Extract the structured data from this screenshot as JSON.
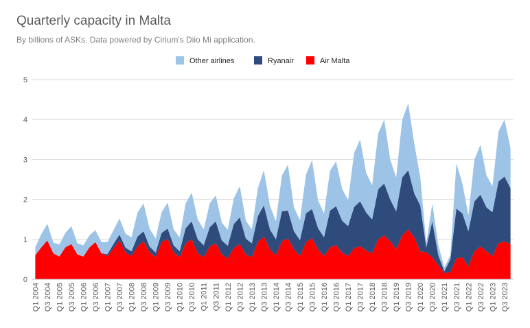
{
  "colors": {
    "other": "#9dc3e6",
    "ryanair": "#2f4b7c",
    "airmalta": "#ff0000",
    "grid": "#d9d9d9",
    "axis": "#bfbfbf"
  },
  "chart_data": {
    "type": "area",
    "title": "Quarterly capacity in Malta",
    "subtitle": "By billions of ASKs. Data powered by Cirium's Diio Mi application.",
    "ylim": [
      0,
      5
    ],
    "yticks": [
      "0",
      "1",
      "2",
      "3",
      "4",
      "5"
    ],
    "grid": true,
    "legend_position": "top",
    "stacked": true,
    "x": [
      "Q1 2004",
      "Q2 2004",
      "Q3 2004",
      "Q4 2004",
      "Q1 2005",
      "Q2 2005",
      "Q3 2005",
      "Q4 2005",
      "Q1 2006",
      "Q2 2006",
      "Q3 2006",
      "Q4 2006",
      "Q1 2007",
      "Q2 2007",
      "Q3 2007",
      "Q4 2007",
      "Q1 2008",
      "Q2 2008",
      "Q3 2008",
      "Q4 2008",
      "Q1 2009",
      "Q2 2009",
      "Q3 2009",
      "Q4 2009",
      "Q1 2010",
      "Q2 2010",
      "Q3 2010",
      "Q4 2010",
      "Q1 2011",
      "Q2 2011",
      "Q3 2011",
      "Q4 2011",
      "Q1 2012",
      "Q2 2012",
      "Q3 2012",
      "Q4 2012",
      "Q1 2013",
      "Q2 2013",
      "Q3 2013",
      "Q4 2013",
      "Q1 2014",
      "Q2 2014",
      "Q3 2014",
      "Q4 2014",
      "Q1 2015",
      "Q2 2015",
      "Q3 2015",
      "Q4 2015",
      "Q1 2016",
      "Q2 2016",
      "Q3 2016",
      "Q4 2016",
      "Q1 2017",
      "Q2 2017",
      "Q3 2017",
      "Q4 2017",
      "Q1 2018",
      "Q2 2018",
      "Q3 2018",
      "Q4 2018",
      "Q1 2019",
      "Q2 2019",
      "Q3 2019",
      "Q4 2019",
      "Q1 2020",
      "Q2 2020",
      "Q3 2020",
      "Q4 2020",
      "Q1 2021",
      "Q2 2021",
      "Q3 2021",
      "Q4 2021",
      "Q1 2022",
      "Q2 2022",
      "Q3 2022",
      "Q4 2022",
      "Q1 2023",
      "Q2 2023",
      "Q3 2023",
      "Q4 2023"
    ],
    "xticklabels": [
      "Q1 2004",
      "Q3 2004",
      "Q1 2005",
      "Q3 2005",
      "Q1 2006",
      "Q3 2006",
      "Q1 2007",
      "Q3 2007",
      "Q1 2008",
      "Q3 2008",
      "Q1 2009",
      "Q3 2009",
      "Q1 2010",
      "Q3 2010",
      "Q1 2011",
      "Q3 2011",
      "Q1 2012",
      "Q3 2012",
      "Q1 2013",
      "Q3 2013",
      "Q1 2014",
      "Q3 2014",
      "Q1 2015",
      "Q3 2015",
      "Q1 2016",
      "Q3 2016",
      "Q1 2017",
      "Q3 2017",
      "Q1 2018",
      "Q3 2018",
      "Q1 2019",
      "Q3 2019",
      "Q1 2020",
      "Q3 2020",
      "Q1 2021",
      "Q3 2021",
      "Q1 2022",
      "Q3 2022",
      "Q1 2023",
      "Q3 2023"
    ],
    "series": [
      {
        "name": "Air Malta",
        "key": "airmalta",
        "values": [
          0.6,
          0.8,
          0.97,
          0.65,
          0.57,
          0.8,
          0.88,
          0.62,
          0.57,
          0.8,
          0.93,
          0.65,
          0.58,
          0.78,
          0.97,
          0.67,
          0.58,
          0.82,
          0.95,
          0.67,
          0.55,
          0.93,
          1.01,
          0.67,
          0.55,
          0.9,
          1.0,
          0.65,
          0.55,
          0.82,
          0.9,
          0.62,
          0.52,
          0.78,
          0.88,
          0.62,
          0.55,
          0.93,
          1.07,
          0.75,
          0.6,
          0.95,
          1.02,
          0.75,
          0.58,
          0.93,
          1.03,
          0.75,
          0.58,
          0.8,
          0.86,
          0.67,
          0.58,
          0.78,
          0.83,
          0.72,
          0.65,
          1.0,
          1.1,
          0.95,
          0.75,
          1.1,
          1.25,
          1.05,
          0.7,
          0.68,
          0.55,
          0.35,
          0.15,
          0.18,
          0.52,
          0.55,
          0.32,
          0.7,
          0.82,
          0.7,
          0.58,
          0.9,
          0.95,
          0.88
        ]
      },
      {
        "name": "Ryanair",
        "key": "ryanair",
        "values": [
          0.0,
          0.0,
          0.0,
          0.0,
          0.0,
          0.0,
          0.0,
          0.0,
          0.0,
          0.0,
          0.0,
          0.0,
          0.05,
          0.1,
          0.15,
          0.12,
          0.12,
          0.25,
          0.25,
          0.15,
          0.12,
          0.23,
          0.26,
          0.18,
          0.15,
          0.38,
          0.45,
          0.35,
          0.3,
          0.48,
          0.55,
          0.35,
          0.32,
          0.6,
          0.67,
          0.4,
          0.35,
          0.65,
          0.78,
          0.5,
          0.4,
          0.75,
          0.7,
          0.45,
          0.4,
          0.72,
          0.73,
          0.53,
          0.47,
          0.92,
          0.97,
          0.8,
          0.75,
          1.03,
          1.12,
          0.95,
          0.85,
          1.25,
          1.3,
          1.05,
          0.95,
          1.45,
          1.48,
          1.1,
          1.15,
          0.12,
          0.9,
          0.25,
          0.05,
          0.32,
          1.25,
          1.1,
          0.88,
          1.25,
          1.3,
          1.1,
          1.1,
          1.55,
          1.62,
          1.4
        ]
      },
      {
        "name": "Other airlines",
        "key": "other",
        "values": [
          0.2,
          0.33,
          0.42,
          0.27,
          0.3,
          0.36,
          0.45,
          0.28,
          0.28,
          0.3,
          0.3,
          0.28,
          0.3,
          0.35,
          0.4,
          0.35,
          0.35,
          0.6,
          0.7,
          0.45,
          0.35,
          0.52,
          0.65,
          0.4,
          0.35,
          0.62,
          0.72,
          0.5,
          0.4,
          0.6,
          0.65,
          0.45,
          0.4,
          0.65,
          0.78,
          0.45,
          0.35,
          0.7,
          0.88,
          0.6,
          0.45,
          0.9,
          1.15,
          0.6,
          0.5,
          0.97,
          1.22,
          0.7,
          0.6,
          1.0,
          1.12,
          0.8,
          0.65,
          1.35,
          1.55,
          1.0,
          0.85,
          1.4,
          1.6,
          1.0,
          0.85,
          1.45,
          1.67,
          1.25,
          0.7,
          0.1,
          0.45,
          0.25,
          0.1,
          0.1,
          1.13,
          0.75,
          0.4,
          1.05,
          1.25,
          0.8,
          0.65,
          1.25,
          1.43,
          1.0
        ]
      }
    ],
    "legend": [
      {
        "label": "Other airlines",
        "key": "other"
      },
      {
        "label": "Ryanair",
        "key": "ryanair"
      },
      {
        "label": "Air Malta",
        "key": "airmalta"
      }
    ]
  }
}
